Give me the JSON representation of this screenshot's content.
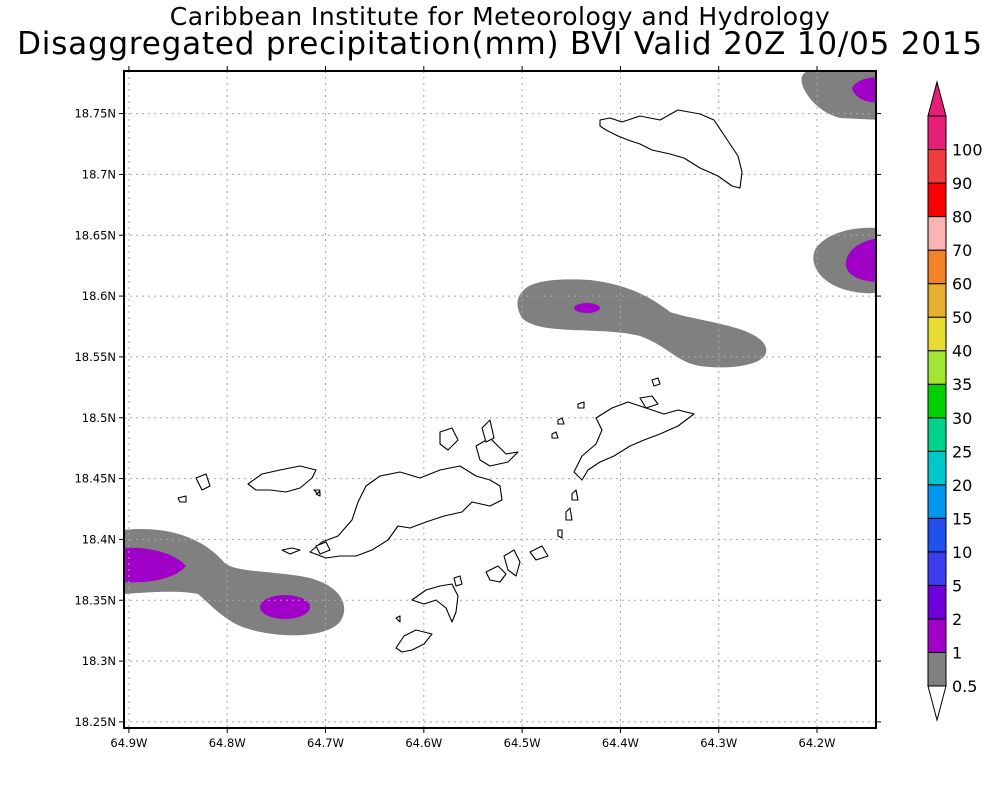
{
  "title": {
    "line1": "Caribbean Institute for Meteorology and Hydrology",
    "line2": "Disaggregated precipitation(mm) BVI Valid 20Z 10/05 2015"
  },
  "map": {
    "lon_range": [
      -64.905,
      -64.14
    ],
    "lat_range": [
      18.245,
      18.785
    ],
    "lon_ticks": [
      {
        "value": -64.9,
        "label": "64.9W"
      },
      {
        "value": -64.8,
        "label": "64.8W"
      },
      {
        "value": -64.7,
        "label": "64.7W"
      },
      {
        "value": -64.6,
        "label": "64.6W"
      },
      {
        "value": -64.5,
        "label": "64.5W"
      },
      {
        "value": -64.4,
        "label": "64.4W"
      },
      {
        "value": -64.3,
        "label": "64.3W"
      },
      {
        "value": -64.2,
        "label": "64.2W"
      }
    ],
    "lat_ticks": [
      {
        "value": 18.25,
        "label": "18.25N"
      },
      {
        "value": 18.3,
        "label": "18.3N"
      },
      {
        "value": 18.35,
        "label": "18.35N"
      },
      {
        "value": 18.4,
        "label": "18.4N"
      },
      {
        "value": 18.45,
        "label": "18.45N"
      },
      {
        "value": 18.5,
        "label": "18.5N"
      },
      {
        "value": 18.55,
        "label": "18.55N"
      },
      {
        "value": 18.6,
        "label": "18.6N"
      },
      {
        "value": 18.65,
        "label": "18.65N"
      },
      {
        "value": 18.7,
        "label": "18.7N"
      },
      {
        "value": 18.75,
        "label": "18.75N"
      }
    ]
  },
  "colorbar": {
    "levels": [
      {
        "label": "0.5",
        "color": "#ffffff"
      },
      {
        "label": "1",
        "color": "#808080"
      },
      {
        "label": "2",
        "color": "#a000c8"
      },
      {
        "label": "5",
        "color": "#6e00dc"
      },
      {
        "label": "10",
        "color": "#3c3cf0"
      },
      {
        "label": "15",
        "color": "#2050f0"
      },
      {
        "label": "20",
        "color": "#0096f0"
      },
      {
        "label": "25",
        "color": "#00c8c8"
      },
      {
        "label": "30",
        "color": "#00d28c"
      },
      {
        "label": "35",
        "color": "#00d200"
      },
      {
        "label": "40",
        "color": "#a0e632"
      },
      {
        "label": "50",
        "color": "#e6dc32"
      },
      {
        "label": "60",
        "color": "#e6af2d"
      },
      {
        "label": "70",
        "color": "#f08228"
      },
      {
        "label": "80",
        "color": "#fab4b4"
      },
      {
        "label": "90",
        "color": "#fa0000"
      },
      {
        "label": "100",
        "color": "#f03c3c"
      }
    ],
    "top_color": "#e61e78"
  }
}
